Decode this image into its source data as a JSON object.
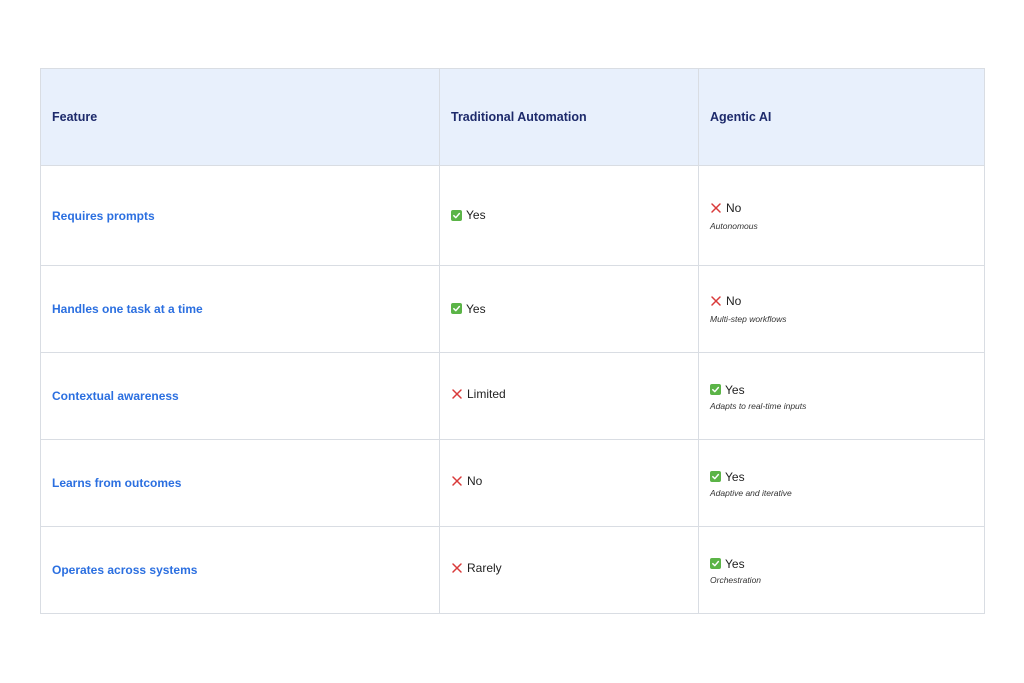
{
  "table": {
    "headers": [
      "Feature",
      "Traditional Automation",
      "Agentic AI"
    ],
    "rows": [
      {
        "feature": "Requires prompts",
        "traditional": {
          "icon": "check-icon",
          "text": "Yes"
        },
        "agentic": {
          "icon": "x-icon",
          "text": "No",
          "note": "Autonomous"
        }
      },
      {
        "feature": "Handles one task at a time",
        "traditional": {
          "icon": "check-icon",
          "text": "Yes"
        },
        "agentic": {
          "icon": "x-icon",
          "text": "No",
          "note": "Multi-step workflows"
        }
      },
      {
        "feature": "Contextual awareness",
        "traditional": {
          "icon": "x-icon",
          "text": "Limited"
        },
        "agentic": {
          "icon": "check-icon",
          "text": "Yes",
          "note": "Adapts to real-time inputs"
        }
      },
      {
        "feature": "Learns from outcomes",
        "traditional": {
          "icon": "x-icon",
          "text": "No"
        },
        "agentic": {
          "icon": "check-icon",
          "text": "Yes",
          "note": "Adaptive and iterative"
        }
      },
      {
        "feature": "Operates across systems",
        "traditional": {
          "icon": "x-icon",
          "text": "Rarely"
        },
        "agentic": {
          "icon": "check-icon",
          "text": "Yes",
          "note": "Orchestration"
        }
      }
    ]
  },
  "colors": {
    "header_bg": "#e8f0fc",
    "header_text": "#1d2a6b",
    "feature_text": "#2b6fe0",
    "check_green": "#5bb447",
    "cross_red": "#d93a3a",
    "border": "#d9dde3"
  }
}
